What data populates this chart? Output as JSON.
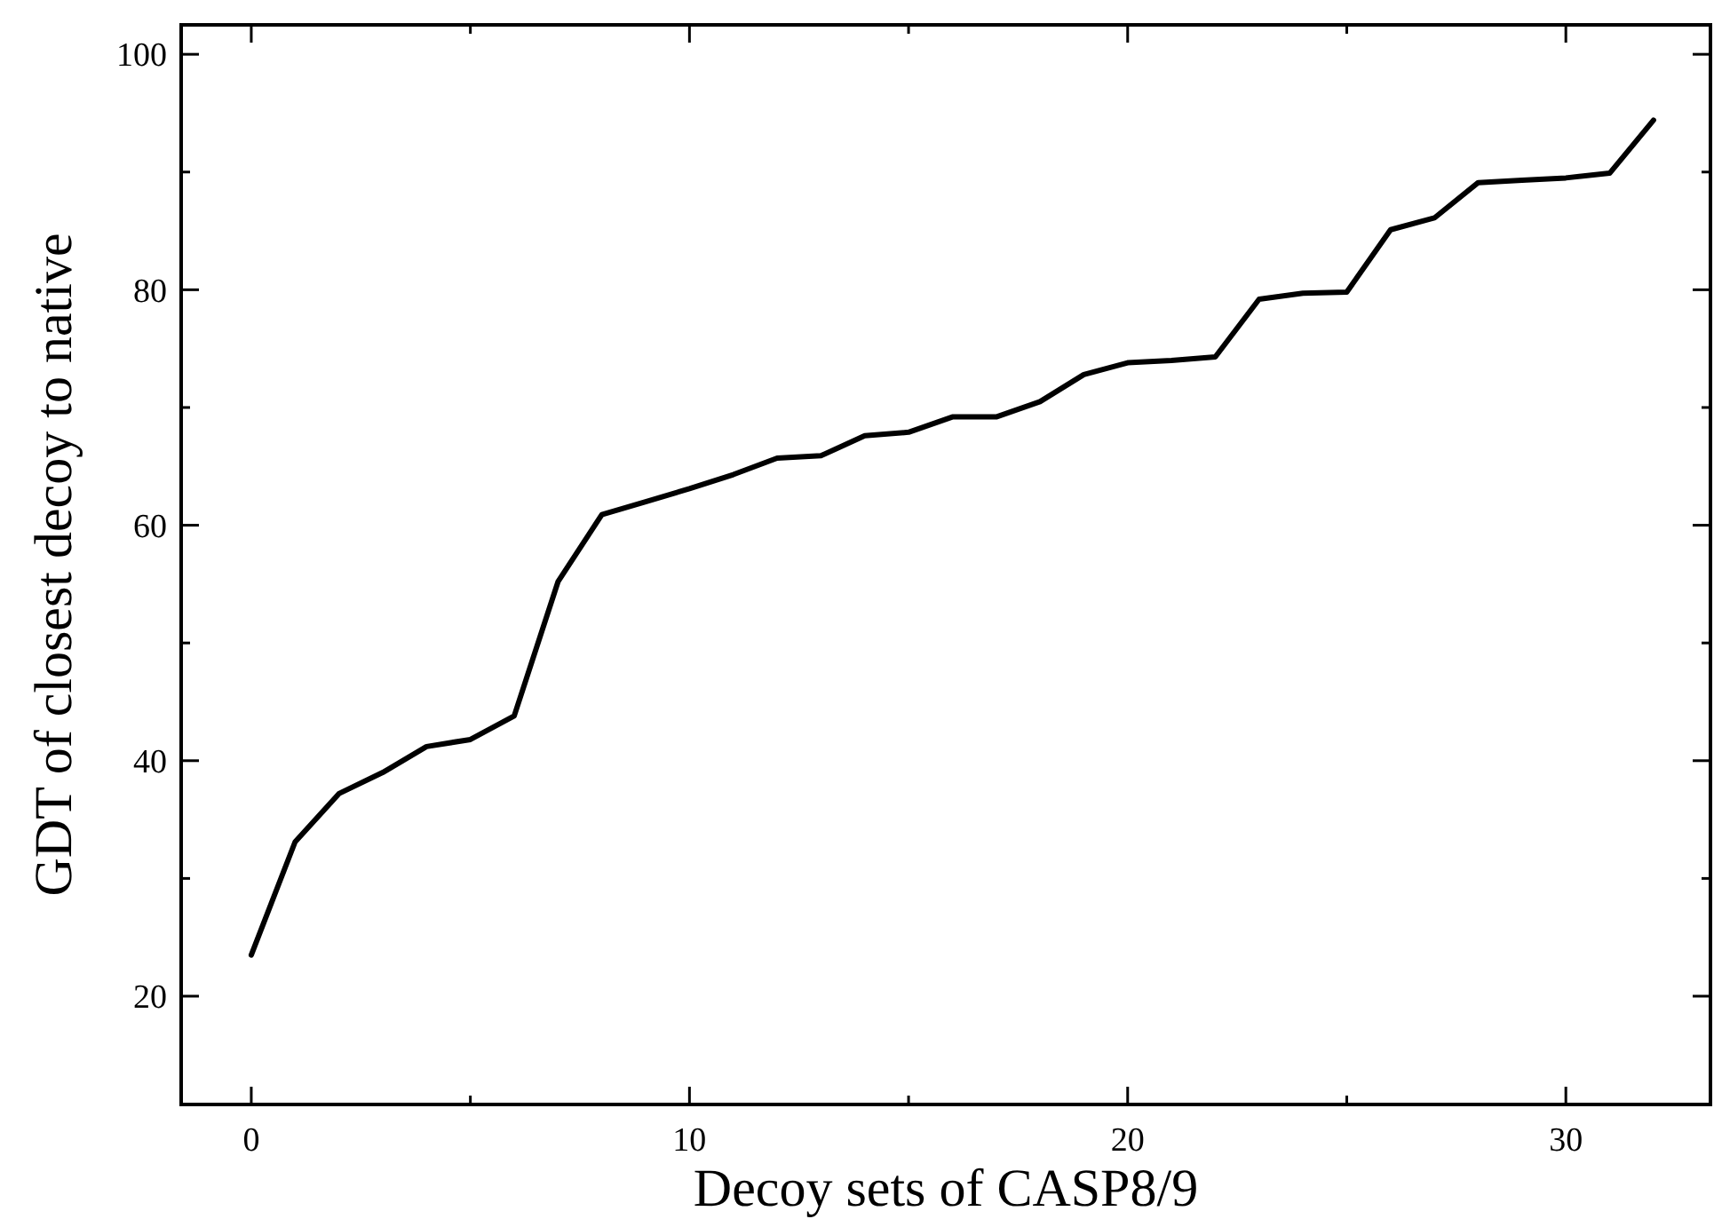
{
  "chart_data": {
    "type": "line",
    "xlabel": "Decoy sets of CASP8/9",
    "ylabel": "GDT of closest decoy to native",
    "x": [
      0,
      1,
      2,
      3,
      4,
      5,
      6,
      7,
      8,
      9,
      10,
      11,
      12,
      13,
      14,
      15,
      16,
      17,
      18,
      19,
      20,
      21,
      22,
      23,
      24,
      25,
      26,
      27,
      28,
      29,
      30,
      31,
      32
    ],
    "series": [
      {
        "color": "#000000",
        "values": [
          23.5,
          33.1,
          37.2,
          39.0,
          41.2,
          41.8,
          43.8,
          55.2,
          60.9,
          62.0,
          63.1,
          64.3,
          65.7,
          65.9,
          67.6,
          67.9,
          69.2,
          69.2,
          70.5,
          72.8,
          73.8,
          74.0,
          74.3,
          79.2,
          79.7,
          79.8,
          85.1,
          86.1,
          89.1,
          89.3,
          89.5,
          89.9,
          94.4
        ]
      }
    ],
    "xlim": [
      -1.6,
      33.3
    ],
    "ylim": [
      10.8,
      102.5
    ],
    "xticks": [
      0,
      {
        "value": 5,
        "label": null
      },
      10,
      {
        "value": 15,
        "label": null
      },
      20,
      {
        "value": 25,
        "label": null
      },
      30
    ],
    "yticks": [
      20,
      {
        "value": 30,
        "label": null
      },
      40,
      {
        "value": 50,
        "label": null
      },
      60,
      {
        "value": 70,
        "label": null
      },
      80,
      {
        "value": 90,
        "label": null
      },
      100
    ],
    "grid": false,
    "marker": "none",
    "line_style": "solid"
  }
}
